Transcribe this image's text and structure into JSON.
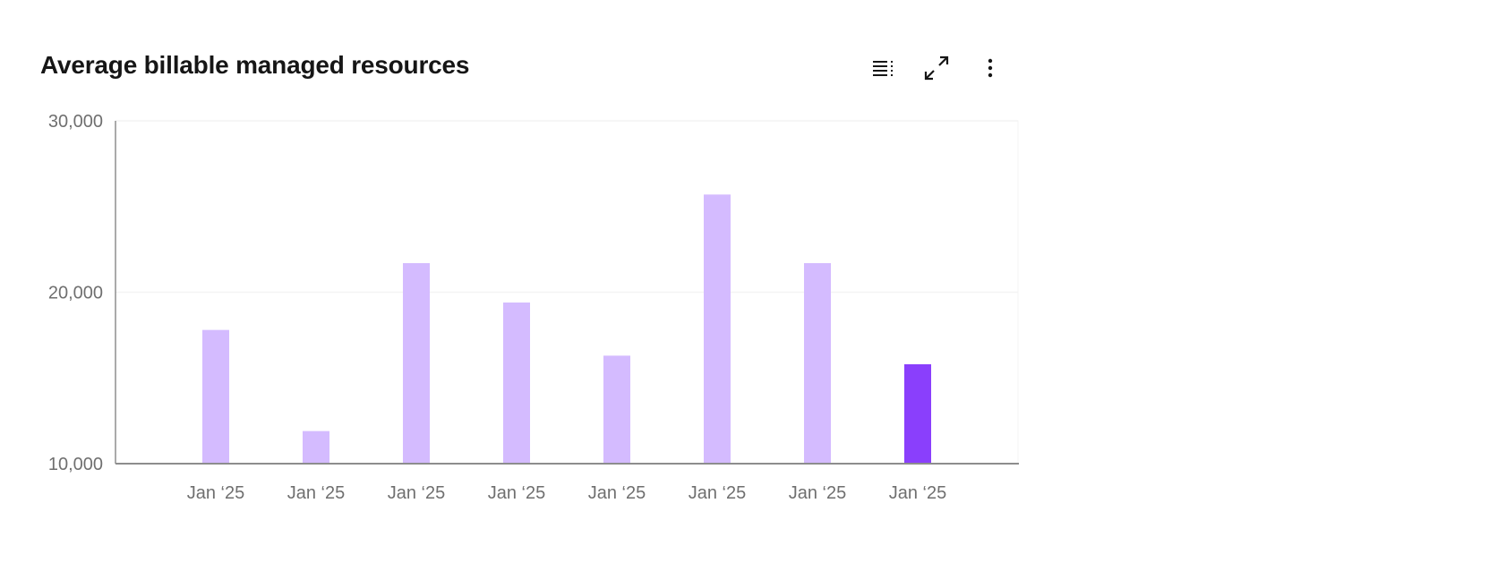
{
  "header": {
    "title": "Average billable managed resources",
    "toolbar": [
      {
        "name": "data-table-icon",
        "label": "Show as table"
      },
      {
        "name": "maximize-icon",
        "label": "Expand"
      },
      {
        "name": "overflow-menu-icon",
        "label": "More options"
      }
    ]
  },
  "colors": {
    "bar": "#d4bbff",
    "highlight": "#8a3ffc",
    "axis": "#8d8d8d",
    "grid": "#f4f4f4"
  },
  "chart_data": {
    "type": "bar",
    "title": "Average billable managed resources",
    "xlabel": "",
    "ylabel": "",
    "ylim": [
      10000,
      30000
    ],
    "yticks": [
      10000,
      20000,
      30000
    ],
    "ytick_labels": [
      "10,000",
      "20,000",
      "30,000"
    ],
    "grid": true,
    "categories": [
      "Jan ‘25",
      "Jan ‘25",
      "Jan ‘25",
      "Jan ‘25",
      "Jan ‘25",
      "Jan ‘25",
      "Jan ‘25",
      "Jan ‘25"
    ],
    "values": [
      17800,
      11900,
      21700,
      19400,
      16300,
      25700,
      21700,
      15800
    ],
    "highlighted_index": 7
  }
}
